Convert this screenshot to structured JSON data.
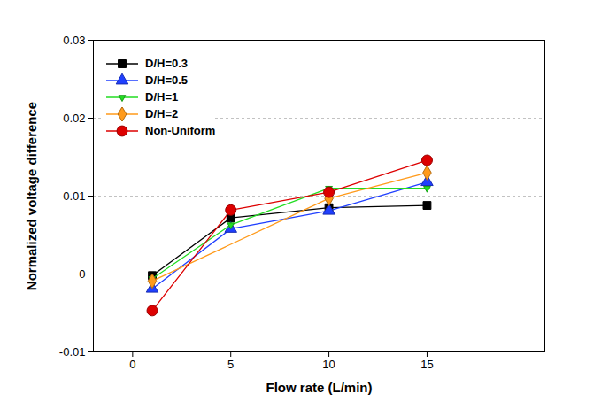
{
  "chart_data": {
    "type": "line",
    "xlabel": "Flow rate (L/min)",
    "ylabel": "Normalized voltage difference",
    "xlim": [
      -2,
      21
    ],
    "xticks": [
      0,
      5,
      10,
      15
    ],
    "ylim": [
      -0.01,
      0.03
    ],
    "yticks": [
      -0.01,
      0,
      0.01,
      0.02,
      0.03
    ],
    "grid": true,
    "legend": "upper left",
    "series": [
      {
        "name": "D/H=0.3",
        "color": "#000000",
        "marker": "square",
        "x": [
          1,
          5,
          10,
          15
        ],
        "values": [
          -0.0002,
          0.0072,
          0.0085,
          0.0088
        ]
      },
      {
        "name": "D/H=0.5",
        "color": "#1f3fff",
        "marker": "triangle",
        "x": [
          1,
          5,
          10,
          15
        ],
        "values": [
          -0.0019,
          0.0058,
          0.0081,
          0.0118
        ]
      },
      {
        "name": "D/H=1",
        "color": "#22dd22",
        "marker": "triangle-down",
        "x": [
          1,
          5,
          10,
          15
        ],
        "values": [
          -0.0006,
          0.0063,
          0.011,
          0.011
        ]
      },
      {
        "name": "D/H=2",
        "color": "#ff9a1a",
        "marker": "diamond",
        "x": [
          1,
          10,
          15
        ],
        "values": [
          -0.0009,
          0.0097,
          0.013
        ]
      },
      {
        "name": "Non-Uniform",
        "color": "#dd0000",
        "marker": "circle",
        "x": [
          1,
          5,
          10,
          15
        ],
        "values": [
          -0.0047,
          0.0082,
          0.0105,
          0.0146
        ]
      }
    ]
  }
}
